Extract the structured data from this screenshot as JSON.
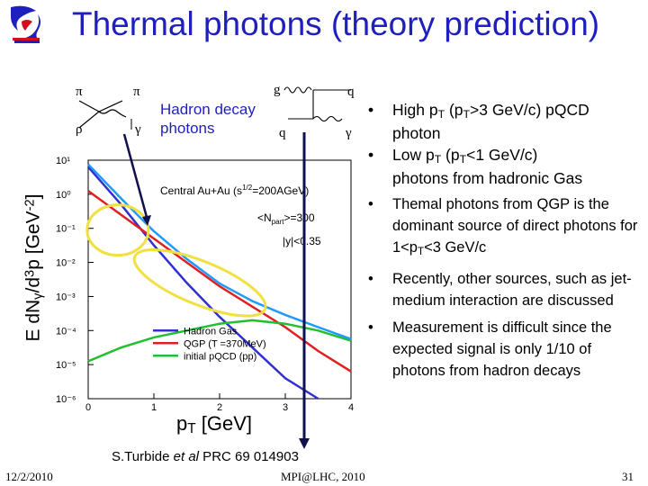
{
  "header": {
    "title": "Thermal photons (theory prediction)"
  },
  "diagrams": {
    "hadron_symbols": {
      "pi_top_left": "π",
      "pi_top_right": "π",
      "rho": "ρ",
      "gamma": "γ"
    },
    "hadron_label_line1": "Hadron decay",
    "hadron_label_line2": "photons",
    "qcd_symbols": {
      "g": "g",
      "q_top": "q",
      "q_bottom": "q",
      "gamma": "γ"
    }
  },
  "plot": {
    "ylabel_prefix": "E dN",
    "ylabel_sub": "γ",
    "ylabel_mid": "/d",
    "ylabel_sup": "3",
    "ylabel_end": "p  [GeV",
    "ylabel_sup2": "-2",
    "ylabel_close": "]",
    "xlabel_main": "p",
    "xlabel_sub": "T",
    "xlabel_unit": "  [GeV]",
    "text_central": "Central Au+Au (s",
    "text_central_sup": "1/2",
    "text_central_end": "=200AGeV)",
    "text_npart": "<N",
    "text_npart_sub": "part",
    "text_npart_end": ">=300",
    "text_y": "|y|<0.35",
    "x_ticks": [
      "0",
      "1",
      "2",
      "3",
      "4"
    ],
    "y_ticks": [
      "10¹",
      "10⁰",
      "10⁻¹",
      "10⁻²",
      "10⁻³",
      "10⁻⁴",
      "10⁻⁵",
      "10⁻⁶"
    ],
    "legend": [
      {
        "label": "Hadron Gas",
        "color": "#3030d0"
      },
      {
        "label": "QGP (T =370MeV)",
        "color": "#e02020"
      },
      {
        "label": "initial pQCD (pp)",
        "color": "#20c030"
      }
    ],
    "colors": {
      "hadron": "#3030d0",
      "qgp": "#e02020",
      "pqcd": "#20c030",
      "total": "#000000",
      "total_bright": "#1f9bff",
      "ellipse": "#f0e040",
      "arrow": "#101050"
    }
  },
  "chart_data": {
    "type": "line",
    "xlabel": "pT [GeV]",
    "ylabel": "E dNγ/d3p [GeV-2]",
    "xlim": [
      0,
      4
    ],
    "ylim_log10": [
      -6,
      1
    ],
    "series": [
      {
        "name": "Hadron Gas",
        "x": [
          0,
          0.5,
          1,
          1.5,
          2,
          2.5,
          3,
          3.5
        ],
        "log10_y": [
          0.8,
          -0.3,
          -1.5,
          -2.6,
          -3.6,
          -4.5,
          -5.4,
          -6.1
        ]
      },
      {
        "name": "QGP (T =370MeV)",
        "x": [
          0,
          0.5,
          1,
          1.5,
          2,
          2.5,
          3,
          3.5,
          4
        ],
        "log10_y": [
          0.1,
          -0.6,
          -1.3,
          -2.0,
          -2.7,
          -3.3,
          -3.9,
          -4.6,
          -5.2
        ]
      },
      {
        "name": "initial pQCD (pp)",
        "x": [
          0,
          0.5,
          1,
          1.5,
          2,
          2.5,
          3,
          3.5,
          4
        ],
        "log10_y": [
          -4.9,
          -4.5,
          -4.2,
          -4.0,
          -3.8,
          -3.7,
          -3.8,
          -4.0,
          -4.3
        ]
      }
    ]
  },
  "bullets": [
    {
      "dot": "•",
      "line1_a": "High p",
      "line1_sub": "T",
      "line1_b": " (p",
      "line1_sub2": "T",
      "line1_c": ">3 GeV/c) pQCD",
      "line2": "photon"
    },
    {
      "dot": "•",
      "line1_a": "Low p",
      "line1_sub": "T",
      "line1_b": " (p",
      "line1_sub2": "T",
      "line1_c": "<1 GeV/c)",
      "line2": "photons from hadronic Gas"
    },
    {
      "dot": "•",
      "text": "Themal photons from QGP is the dominant source of direct photons for 1<p",
      "sub": "T",
      "end": "<3 GeV/c"
    },
    {
      "dot": "•",
      "text": "Recently, other sources, such as jet-medium interaction are discussed"
    },
    {
      "dot": "•",
      "text": "Measurement is difficult since the expected signal is only 1/10 of photons from hadron decays"
    }
  ],
  "reference": {
    "author": "S.Turbide ",
    "etal": "et al",
    "journal": "  PRC  69  014903"
  },
  "footer": {
    "date": "12/2/2010",
    "venue": "MPI@LHC, 2010",
    "page": "31"
  }
}
